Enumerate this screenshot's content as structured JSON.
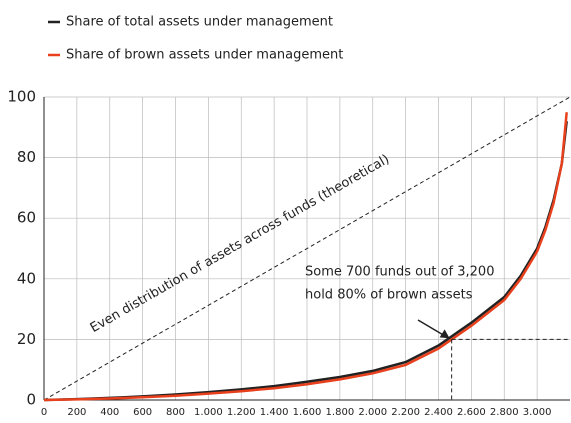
{
  "chart_data": {
    "type": "line",
    "x": [
      0,
      200,
      400,
      600,
      800,
      1000,
      1200,
      1400,
      1600,
      1800,
      2000,
      2200,
      2400,
      2600,
      2800,
      2900,
      3000,
      3050,
      3100,
      3150,
      3180
    ],
    "series": [
      {
        "name": "Share of total assets under management",
        "color": "#222222",
        "values": [
          0,
          0.3,
          0.7,
          1.2,
          1.8,
          2.6,
          3.5,
          4.6,
          6,
          7.6,
          9.6,
          12.5,
          18,
          25.5,
          34,
          41,
          50,
          57,
          66,
          78,
          92
        ]
      },
      {
        "name": "Share of brown assets under management",
        "color": "#e8401c",
        "values": [
          0,
          0.2,
          0.5,
          0.9,
          1.4,
          2.1,
          2.9,
          3.9,
          5.2,
          6.8,
          8.8,
          11.6,
          17,
          24.5,
          33,
          40,
          49,
          56,
          65,
          78,
          95
        ]
      }
    ],
    "xlim": [
      0,
      3200
    ],
    "ylim": [
      0,
      100
    ],
    "xticks": [
      0,
      200,
      400,
      600,
      800,
      {
        "value": 1000,
        "label": "1.000"
      },
      {
        "value": 1200,
        "label": "1.200"
      },
      {
        "value": 1400,
        "label": "1.400"
      },
      {
        "value": 1600,
        "label": "1.600"
      },
      {
        "value": 1800,
        "label": "1.800"
      },
      {
        "value": 2000,
        "label": "2.000"
      },
      {
        "value": 2200,
        "label": "2.200"
      },
      {
        "value": 2400,
        "label": "2.400"
      },
      {
        "value": 2600,
        "label": "2.600"
      },
      {
        "value": 2800,
        "label": "2.800"
      },
      {
        "value": 3000,
        "label": "3.000"
      }
    ],
    "yticks": [
      0,
      20,
      40,
      60,
      80,
      100
    ],
    "grid": true,
    "diagonal_label": "Even distribution of assets across funds (theoretical)",
    "annotation": {
      "lines": [
        "Some 700 funds out of 3,200",
        "hold 80% of brown assets"
      ],
      "x": 2480,
      "y": 20
    }
  }
}
